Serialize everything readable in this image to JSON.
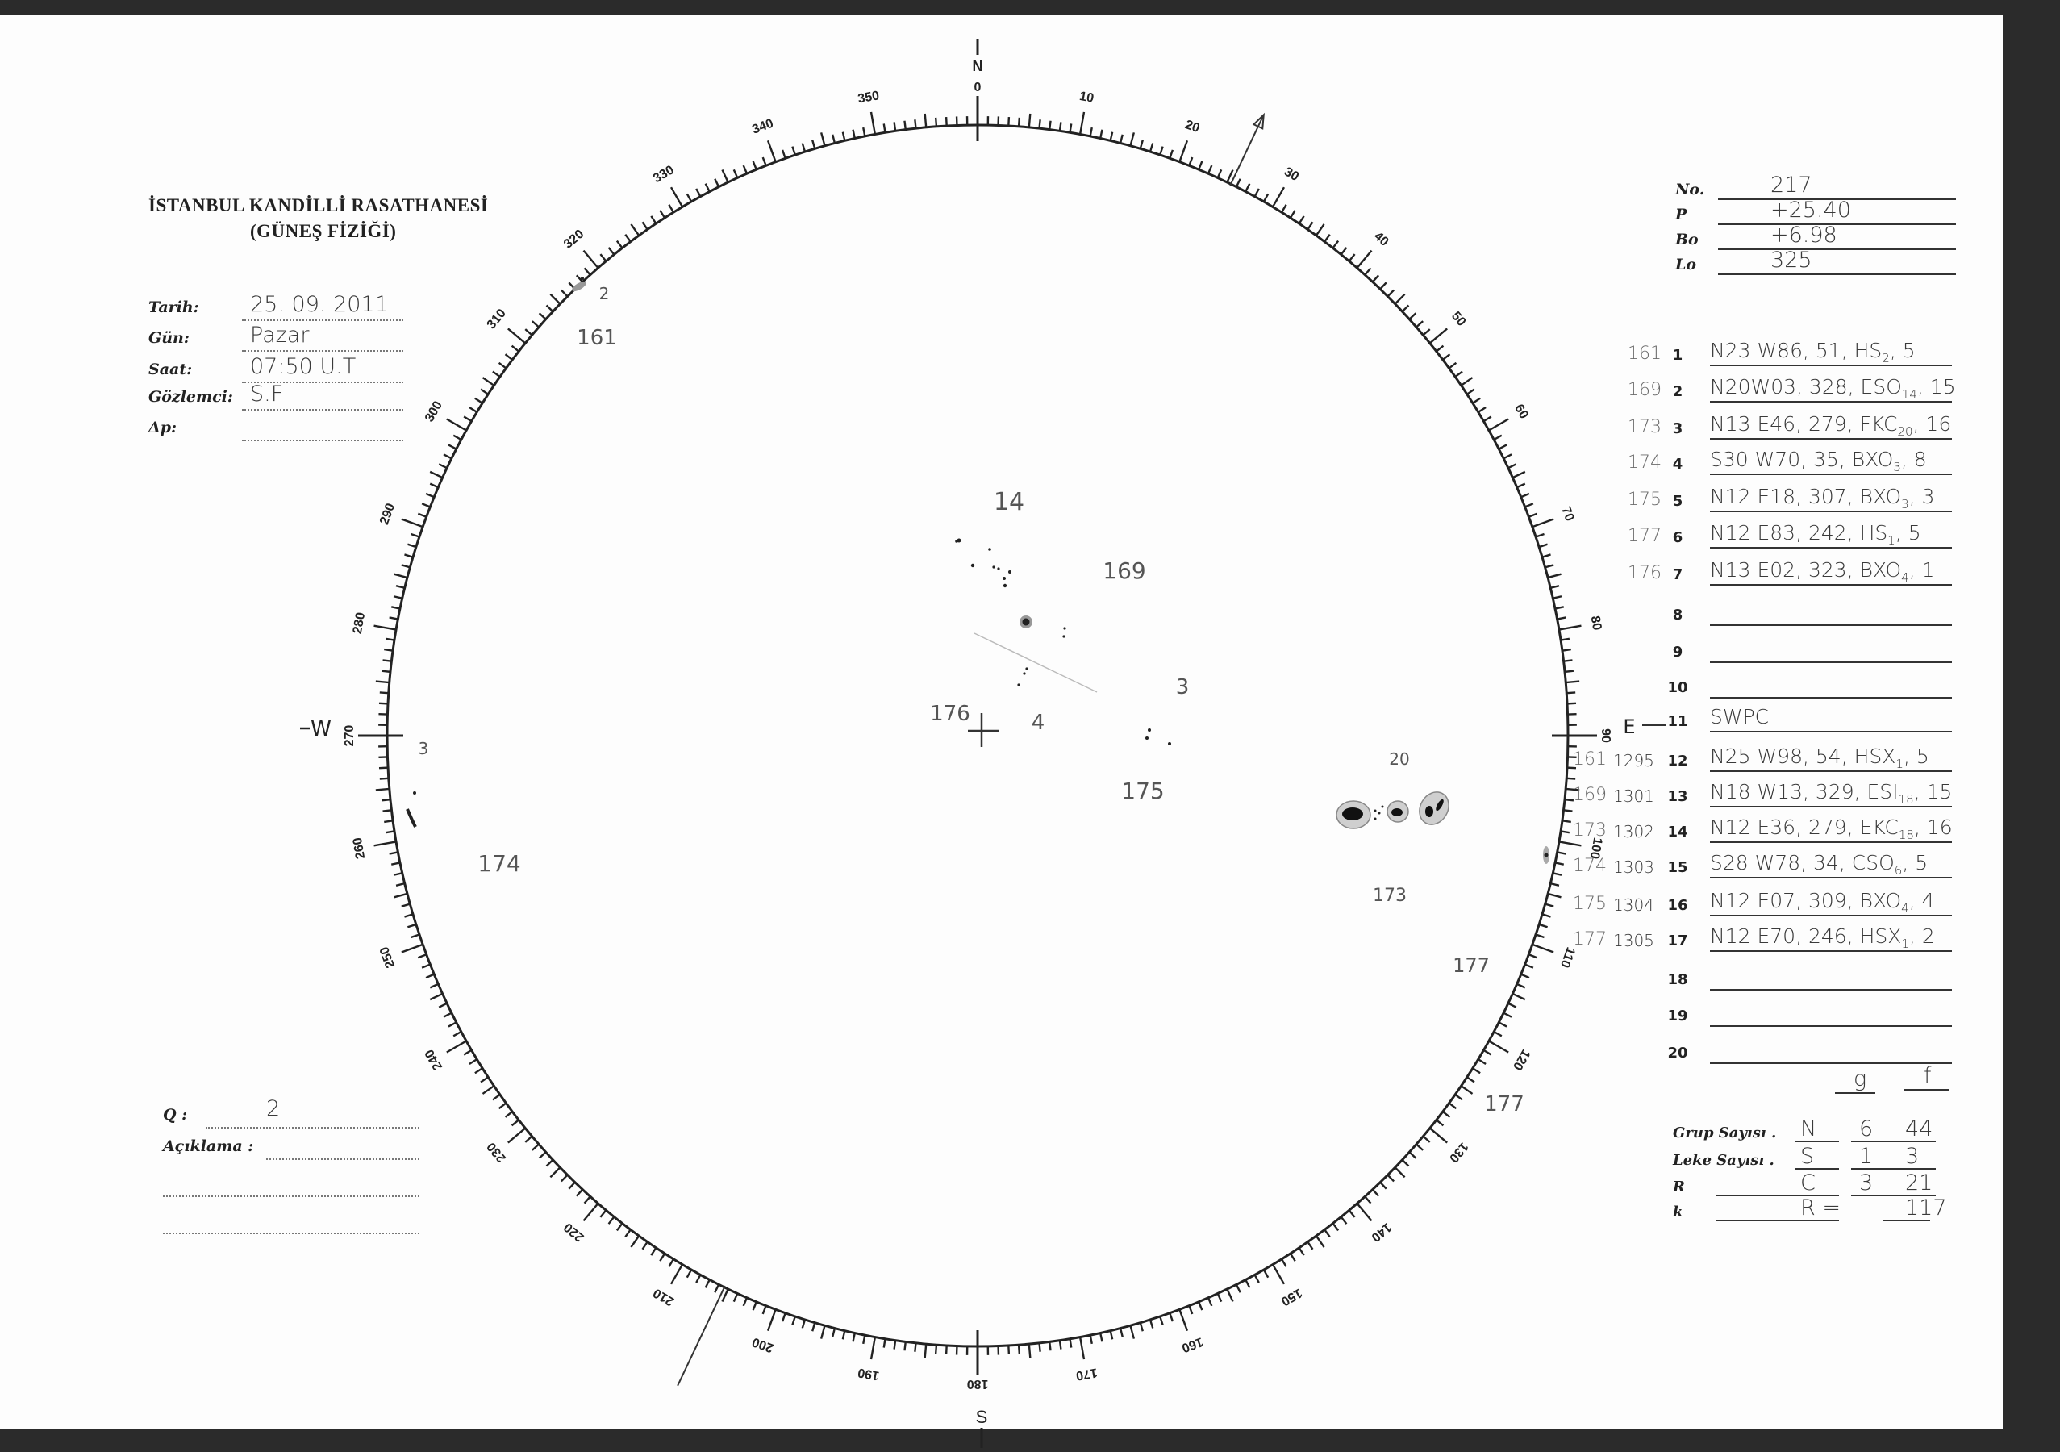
{
  "header": {
    "institution": "İSTANBUL KANDİLLİ RASATHANESİ",
    "department": "(GÜNEŞ FİZİĞİ)"
  },
  "observation": {
    "date_label": "Tarih:",
    "date": "25. 09. 2011",
    "day_label": "Gün:",
    "day": "Pazar",
    "time_label": "Saat:",
    "time": "07:50   U.T",
    "observer_label": "Gözlemci:",
    "observer": "S.F",
    "delta_p_label": "Δp:",
    "delta_p": ""
  },
  "quality": {
    "q_label": "Q :",
    "q": "2",
    "remarks_label": "Açıklama :",
    "remarks": ""
  },
  "ephemeris": [
    {
      "label": "No.",
      "value": "217"
    },
    {
      "label": "P",
      "value": "+25.40"
    },
    {
      "label": "Bo",
      "value": "+6.98"
    },
    {
      "label": "Lo",
      "value": "325"
    }
  ],
  "groups": [
    {
      "n": "1",
      "group": "161",
      "noaa": "",
      "text": "N23 W86, 51, HS",
      "sub": "2",
      "tail": ", 5"
    },
    {
      "n": "2",
      "group": "169",
      "noaa": "",
      "text": "N20W03, 328, ESO",
      "sub": "14",
      "tail": ", 15"
    },
    {
      "n": "3",
      "group": "173",
      "noaa": "",
      "text": "N13 E46, 279, FKC",
      "sub": "20",
      "tail": ", 16"
    },
    {
      "n": "4",
      "group": "174",
      "noaa": "",
      "text": "S30 W70, 35, BXO",
      "sub": "3",
      "tail": ", 8"
    },
    {
      "n": "5",
      "group": "175",
      "noaa": "",
      "text": "N12 E18, 307, BXO",
      "sub": "3",
      "tail": ", 3"
    },
    {
      "n": "6",
      "group": "177",
      "noaa": "",
      "text": "N12 E83, 242, HS",
      "sub": "1",
      "tail": ", 5"
    },
    {
      "n": "7",
      "group": "176",
      "noaa": "",
      "text": "N13 E02, 323, BXO",
      "sub": "4",
      "tail": ", 1"
    },
    {
      "n": "8",
      "group": "",
      "noaa": "",
      "text": "",
      "sub": "",
      "tail": ""
    },
    {
      "n": "9",
      "group": "",
      "noaa": "",
      "text": "",
      "sub": "",
      "tail": ""
    },
    {
      "n": "10",
      "group": "",
      "noaa": "",
      "text": "",
      "sub": "",
      "tail": ""
    },
    {
      "n": "11",
      "group": "",
      "noaa": "",
      "text": "SWPC",
      "sub": "",
      "tail": ""
    },
    {
      "n": "12",
      "group": "161",
      "noaa": "1295",
      "text": "N25 W98, 54, HSX",
      "sub": "1",
      "tail": ", 5"
    },
    {
      "n": "13",
      "group": "169",
      "noaa": "1301",
      "text": "N18 W13, 329, ESI",
      "sub": "18",
      "tail": ", 15"
    },
    {
      "n": "14",
      "group": "173",
      "noaa": "1302",
      "text": "N12 E36, 279, EKC",
      "sub": "18",
      "tail": ", 16"
    },
    {
      "n": "15",
      "group": "174",
      "noaa": "1303",
      "text": "S28 W78, 34, CSO",
      "sub": "6",
      "tail": ", 5"
    },
    {
      "n": "16",
      "group": "175",
      "noaa": "1304",
      "text": "N12 E07, 309, BXO",
      "sub": "4",
      "tail": ", 4"
    },
    {
      "n": "17",
      "group": "177",
      "noaa": "1305",
      "text": "N12 E70, 246, HSX",
      "sub": "1",
      "tail": ", 2"
    },
    {
      "n": "18",
      "group": "",
      "noaa": "",
      "text": "",
      "sub": "",
      "tail": ""
    },
    {
      "n": "19",
      "group": "",
      "noaa": "",
      "text": "",
      "sub": "",
      "tail": ""
    },
    {
      "n": "20",
      "group": "",
      "noaa": "",
      "text": "",
      "sub": "",
      "tail": ""
    }
  ],
  "counts": {
    "col_g": "g",
    "col_f": "f",
    "rows": [
      {
        "label": "Grup Sayısı .",
        "key": "N",
        "g": "6",
        "f": "44"
      },
      {
        "label": "Leke Sayısı .",
        "key": "S",
        "g": "1",
        "f": "3"
      },
      {
        "label": "R",
        "key": "C",
        "g": "3",
        "f": "21"
      },
      {
        "label": "k",
        "key": "R =",
        "g": "",
        "f": "117"
      }
    ]
  },
  "disk": {
    "north": "N",
    "south": "S",
    "east": "E",
    "west": "W",
    "position_angle_deg": 25.4,
    "scale_labels": [
      "0",
      "10",
      "20",
      "30",
      "40",
      "50",
      "60",
      "70",
      "80",
      "90",
      "100",
      "110",
      "120",
      "130",
      "140",
      "150",
      "160",
      "170",
      "180",
      "190",
      "200",
      "210",
      "220",
      "230",
      "240",
      "250",
      "260",
      "270",
      "280",
      "290",
      "300",
      "310",
      "320",
      "330",
      "340",
      "350"
    ],
    "annotations": [
      {
        "text": "14"
      },
      {
        "text": "169"
      },
      {
        "text": "176"
      },
      {
        "text": "4"
      },
      {
        "text": "3"
      },
      {
        "text": "175"
      },
      {
        "text": "20"
      },
      {
        "text": "173"
      },
      {
        "text": "177"
      },
      {
        "text": "177"
      },
      {
        "text": "174"
      },
      {
        "text": "3"
      },
      {
        "text": "2"
      },
      {
        "text": "161"
      }
    ]
  },
  "colors": {
    "ink": "#222222",
    "pencil": "#6b6b6b",
    "paper": "#fdfdfd",
    "scan_border": "#2b2b2b"
  }
}
